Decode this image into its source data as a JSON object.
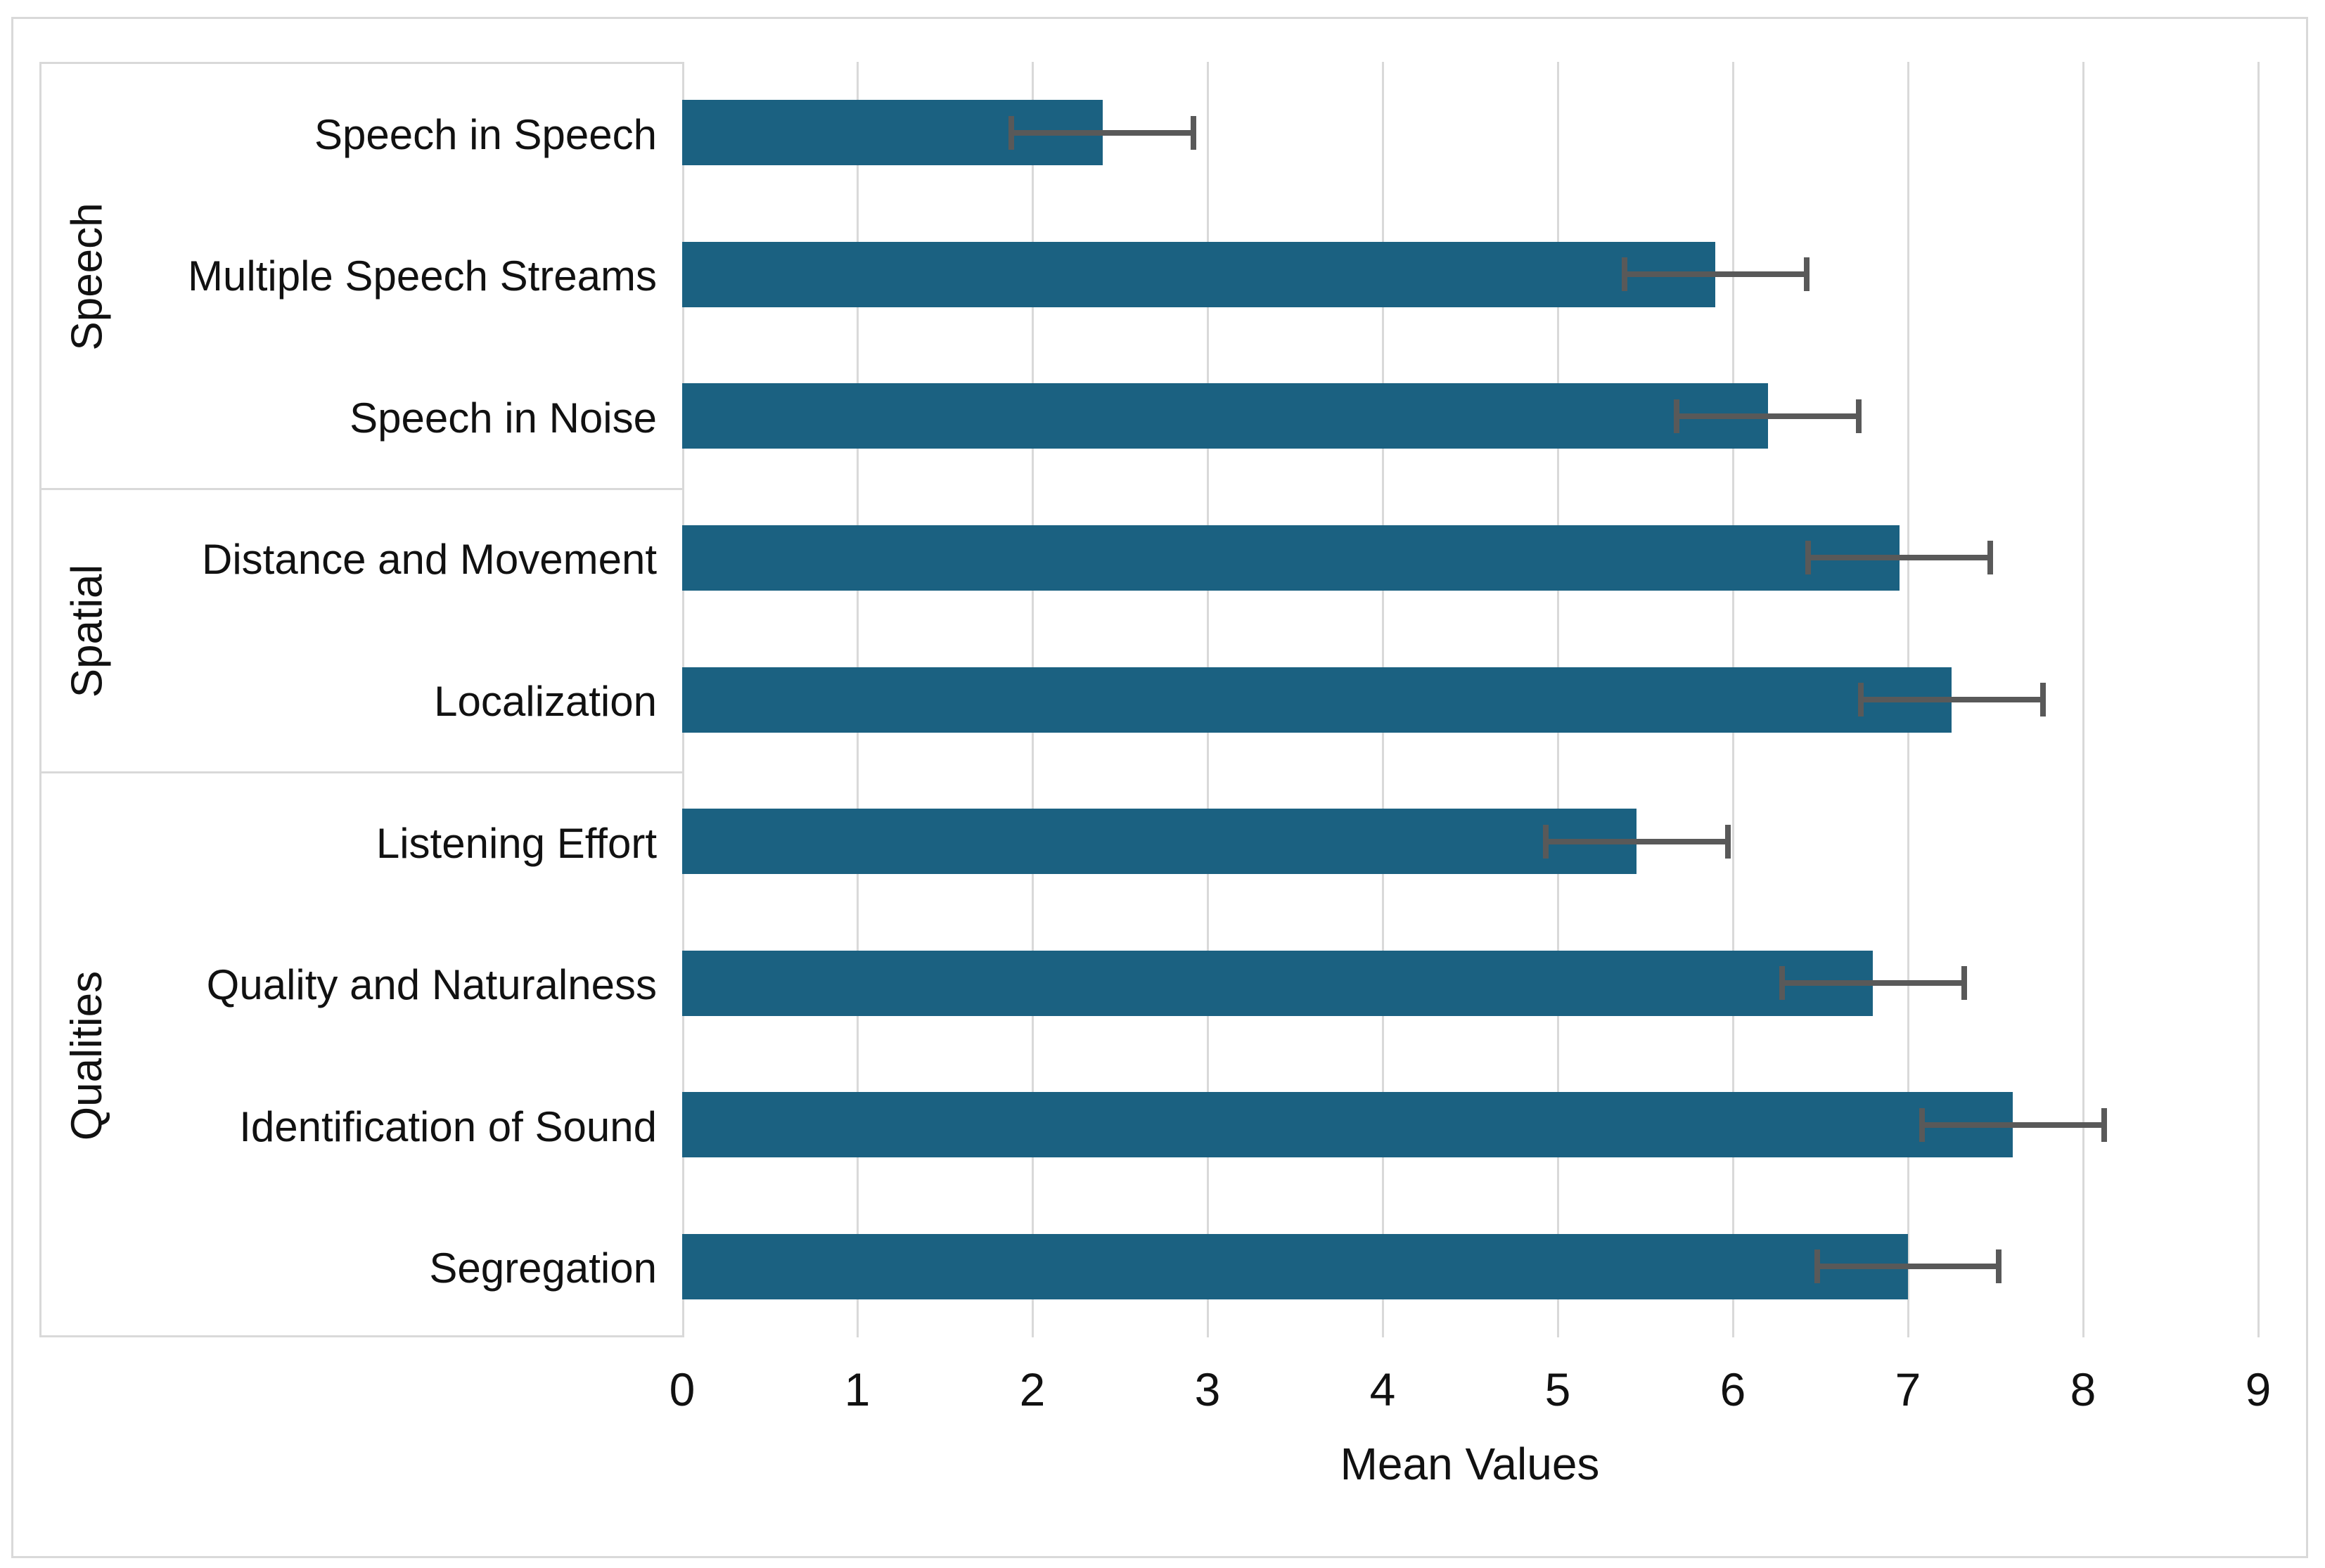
{
  "chart_data": {
    "type": "bar",
    "orientation": "horizontal",
    "title": "",
    "xlabel": "Mean Values",
    "ylabel": "",
    "xlim": [
      0,
      9
    ],
    "xticks": [
      0,
      1,
      2,
      3,
      4,
      5,
      6,
      7,
      8,
      9
    ],
    "grid": "vertical",
    "legend": "none",
    "bar_color": "#1b6181",
    "error_bar_color": "#595959",
    "gridline_color": "#d9d9d9",
    "groups": [
      {
        "label": "Speech",
        "count": 3
      },
      {
        "label": "Spatial",
        "count": 2
      },
      {
        "label": "Qualities",
        "count": 4
      }
    ],
    "categories": [
      "Speech in Speech",
      "Multiple Speech Streams",
      "Speech in Noise",
      "Distance and Movement",
      "Localization",
      "Listening Effort",
      "Quality and Naturalness",
      "Identification of Sound",
      "Segregation"
    ],
    "values": [
      2.4,
      5.9,
      6.2,
      6.95,
      7.25,
      5.45,
      6.8,
      7.6,
      7.0
    ],
    "errors": [
      0.52,
      0.52,
      0.52,
      0.52,
      0.52,
      0.52,
      0.52,
      0.52,
      0.52
    ]
  }
}
